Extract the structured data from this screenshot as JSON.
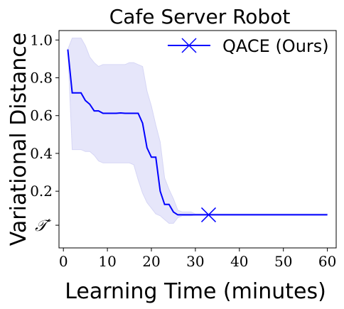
{
  "chart_data": {
    "type": "line",
    "title": "Cafe Server Robot",
    "xlabel": "Learning Time (minutes)",
    "ylabel": "Variational Distance",
    "xlim": [
      -1,
      62
    ],
    "ylim": [
      -0.1,
      1.05
    ],
    "xticks": [
      0,
      10,
      20,
      30,
      40,
      50,
      60
    ],
    "yticks": [
      {
        "value": 0.2,
        "label": "0.2"
      },
      {
        "value": 0.4,
        "label": "0.4"
      },
      {
        "value": 0.6,
        "label": "0.6"
      },
      {
        "value": 0.8,
        "label": "0.8"
      },
      {
        "value": 1.0,
        "label": "1.0"
      }
    ],
    "y_reference": {
      "value": 0.02,
      "label": "𝒯′"
    },
    "grid": false,
    "legend": {
      "placement": "top-right",
      "marker": "x"
    },
    "series": [
      {
        "name": "QACE (Ours)",
        "color": "#0000ff",
        "band_color": "#e6e6fa",
        "x": [
          1,
          2,
          3,
          4,
          5,
          6,
          7,
          8,
          9,
          10,
          11,
          12,
          13,
          14,
          15,
          16,
          17,
          18,
          19,
          20,
          21,
          22,
          23,
          24,
          25,
          26,
          27,
          28,
          29,
          30,
          31,
          32,
          33,
          34,
          35,
          40,
          45,
          50,
          55,
          60
        ],
        "y": [
          0.95,
          0.72,
          0.72,
          0.72,
          0.68,
          0.66,
          0.625,
          0.625,
          0.612,
          0.612,
          0.612,
          0.612,
          0.614,
          0.612,
          0.612,
          0.612,
          0.612,
          0.56,
          0.43,
          0.38,
          0.38,
          0.2,
          0.13,
          0.13,
          0.09,
          0.075,
          0.075,
          0.075,
          0.075,
          0.075,
          0.075,
          0.075,
          0.075,
          0.075,
          0.075,
          0.075,
          0.075,
          0.075,
          0.075,
          0.075
        ],
        "lower": [
          0.95,
          0.42,
          0.42,
          0.42,
          0.41,
          0.41,
          0.39,
          0.36,
          0.35,
          0.35,
          0.35,
          0.35,
          0.35,
          0.35,
          0.35,
          0.34,
          0.26,
          0.19,
          0.14,
          0.11,
          0.08,
          0.07,
          0.05,
          0.03,
          0.03,
          0.06,
          0.07,
          0.07,
          0.07,
          0.075,
          0.075,
          0.075,
          0.075,
          0.075,
          0.075,
          0.075,
          0.075,
          0.075,
          0.075,
          0.075
        ],
        "upper": [
          0.95,
          1.01,
          1.01,
          1.01,
          0.97,
          0.91,
          0.88,
          0.86,
          0.87,
          0.87,
          0.87,
          0.87,
          0.87,
          0.87,
          0.88,
          0.88,
          0.87,
          0.86,
          0.73,
          0.65,
          0.55,
          0.46,
          0.27,
          0.21,
          0.16,
          0.1,
          0.09,
          0.09,
          0.09,
          0.08,
          0.08,
          0.08,
          0.08,
          0.08,
          0.08,
          0.08,
          0.08,
          0.08,
          0.08,
          0.08
        ],
        "marker": {
          "x": 33,
          "y": 0.075
        }
      }
    ]
  }
}
